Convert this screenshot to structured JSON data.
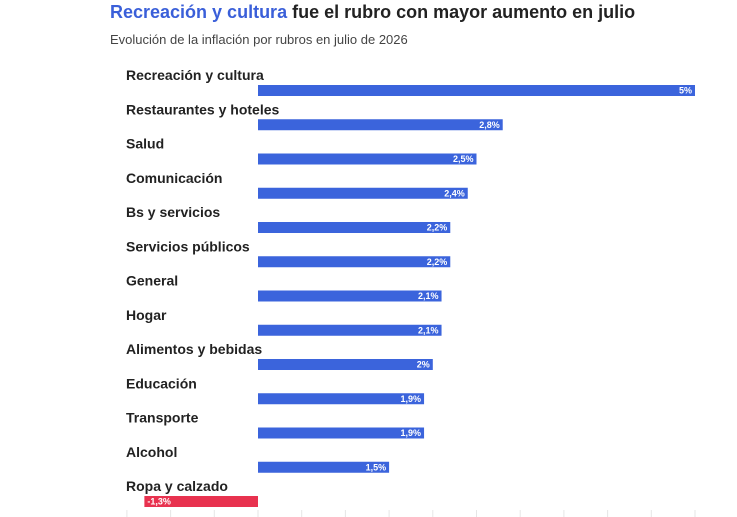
{
  "header": {
    "title_highlight": "Recreación y cultura",
    "title_rest": " fue el rubro con mayor aumento en julio",
    "subtitle": "Evolución de la inflación por rubros en julio de 2026"
  },
  "colors": {
    "positive": "#3b64dc",
    "negative": "#e8324f",
    "highlight_text": "#3a5fd9"
  },
  "chart_data": {
    "type": "bar",
    "orientation": "horizontal",
    "title": "Recreación y cultura fue el rubro con mayor aumento en julio",
    "subtitle": "Evolución de la inflación por rubros en julio de 2026",
    "categories": [
      "Recreación y cultura",
      "Restaurantes y hoteles",
      "Salud",
      "Comunicación",
      "Bs y servicios",
      "Servicios públicos",
      "General",
      "Hogar",
      "Alimentos y bebidas",
      "Educación",
      "Transporte",
      "Alcohol",
      "Ropa y calzado"
    ],
    "values": [
      5,
      2.8,
      2.5,
      2.4,
      2.2,
      2.2,
      2.1,
      2.1,
      2,
      1.9,
      1.9,
      1.5,
      -1.3
    ],
    "value_labels": [
      "5%",
      "2,8%",
      "2,5%",
      "2,4%",
      "2,2%",
      "2,2%",
      "2,1%",
      "2,1%",
      "2%",
      "1,9%",
      "1,9%",
      "1,5%",
      "-1,3%"
    ],
    "xlim": [
      -3,
      10
    ],
    "grid": true,
    "legend": "none"
  }
}
